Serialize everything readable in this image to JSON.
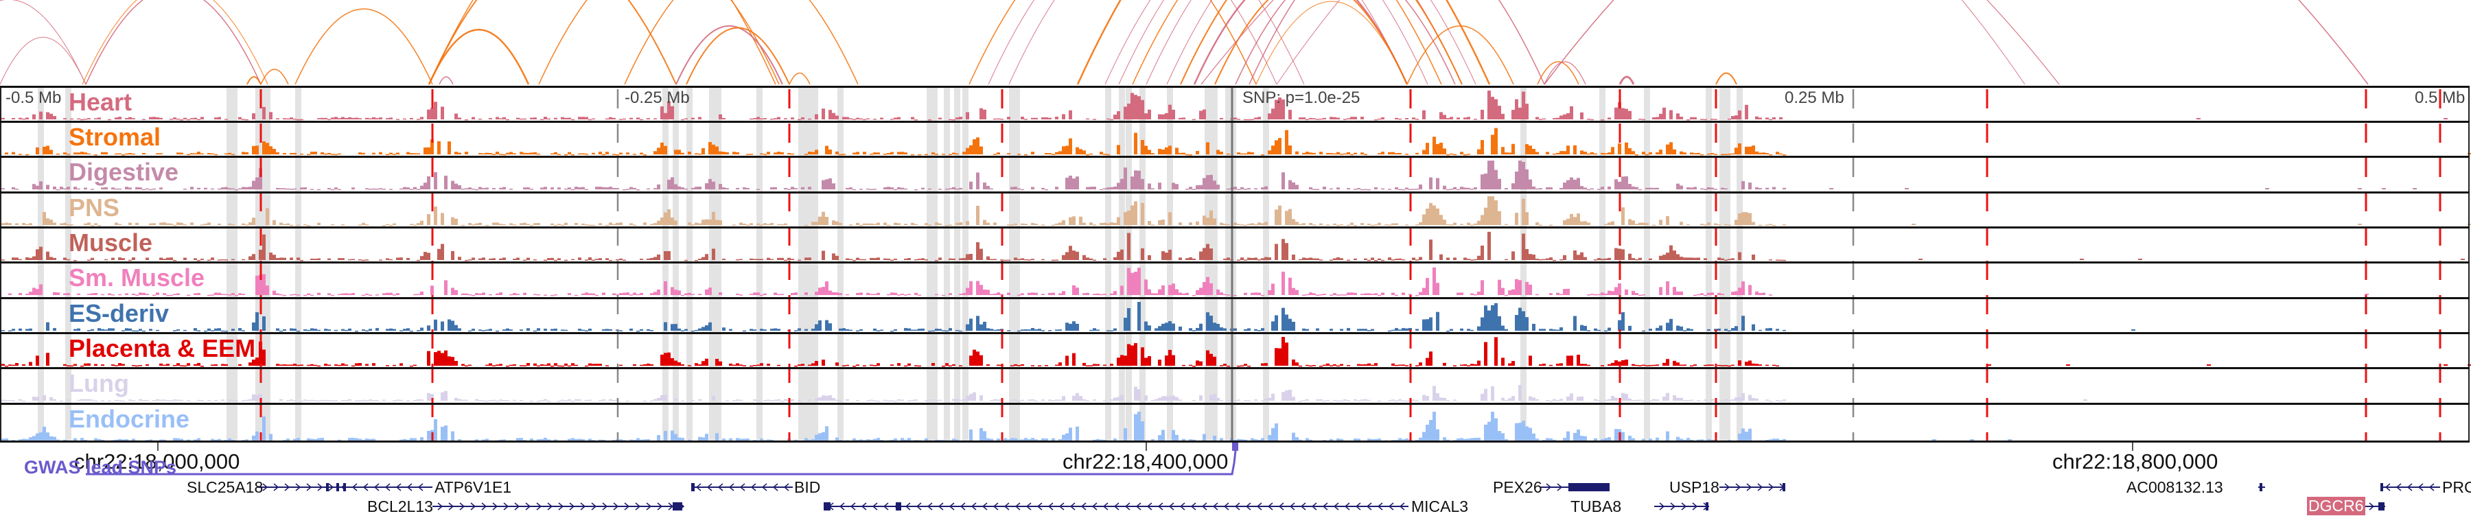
{
  "ruler": {
    "labels": [
      "-0.5 Mb",
      "-0.25 Mb",
      "SNP: p=1.0e-25",
      "0.25 Mb",
      "0.5 Mb"
    ]
  },
  "tracks": [
    {
      "name": "Heart",
      "color": "#d46a7e"
    },
    {
      "name": "Stromal",
      "color": "#f5730d"
    },
    {
      "name": "Digestive",
      "color": "#c48aaa"
    },
    {
      "name": "PNS",
      "color": "#deb591"
    },
    {
      "name": "Muscle",
      "color": "#c0625a"
    },
    {
      "name": "Sm. Muscle",
      "color": "#f080bd"
    },
    {
      "name": "ES-deriv",
      "color": "#3f73ad"
    },
    {
      "name": "Placenta & EEM",
      "color": "#e00000"
    },
    {
      "name": "Lung",
      "color": "#d9d2ea"
    },
    {
      "name": "Endocrine",
      "color": "#99bff7"
    }
  ],
  "coordinates": [
    "chr22:18,000,000",
    "chr22:18,400,000",
    "chr22:18,800,000"
  ],
  "gwas": {
    "label": "GWAS lead SNPs",
    "color": "#6a5acd"
  },
  "genes": [
    {
      "name": "SLC25A18",
      "strand": "+"
    },
    {
      "name": "ATP6V1E1",
      "strand": "-"
    },
    {
      "name": "BCL2L13",
      "strand": "+"
    },
    {
      "name": "BID",
      "strand": "-"
    },
    {
      "name": "MICAL3",
      "strand": "-"
    },
    {
      "name": "PEX26",
      "strand": "+"
    },
    {
      "name": "TUBA8",
      "strand": "+"
    },
    {
      "name": "USP18",
      "strand": "+"
    },
    {
      "name": "AC008132.13",
      "strand": "+"
    },
    {
      "name": "DGCR6",
      "strand": "+",
      "highlighted": true
    },
    {
      "name": "PRC",
      "strand": "-"
    }
  ],
  "colors": {
    "peak_line": "#ee1111",
    "highlight_band": "#e3e3e3",
    "gene_color": "#1c1c6e",
    "gene_highlight": "#d4697e",
    "arc_pink": "#d46a7e",
    "arc_orange": "#f5730d"
  }
}
